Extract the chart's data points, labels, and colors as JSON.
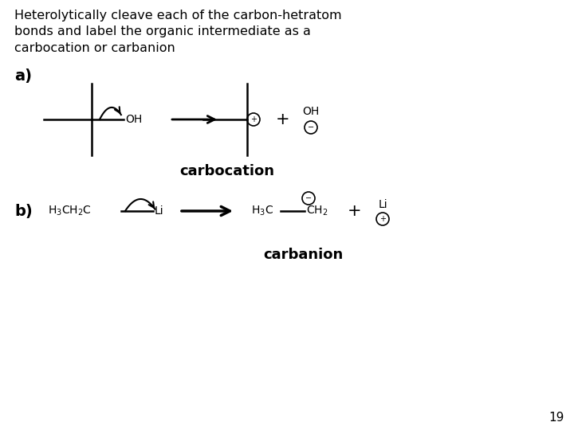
{
  "title_text": "Heterolytically cleave each of the carbon-hetratom\nbonds and label the organic intermediate as a\ncarbocation or carbanion",
  "background_color": "#ffffff",
  "text_color": "#000000",
  "page_number": "19",
  "label_a": "a)",
  "label_b": "b)",
  "carbocation_label": "carbocation",
  "carbanion_label": "carbanion",
  "title_fontsize": 11.5,
  "label_fontsize": 13,
  "chem_fontsize": 10,
  "bold_label_fontsize": 14
}
